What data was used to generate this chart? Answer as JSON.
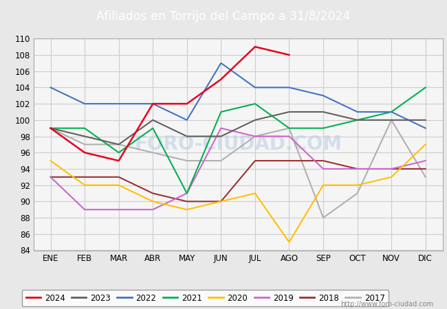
{
  "title": "Afiliados en Torrijo del Campo a 31/8/2024",
  "title_bg_color": "#4d7ebf",
  "title_text_color": "white",
  "ylim": [
    84,
    110
  ],
  "yticks": [
    84,
    86,
    88,
    90,
    92,
    94,
    96,
    98,
    100,
    102,
    104,
    106,
    108,
    110
  ],
  "months": [
    "ENE",
    "FEB",
    "MAR",
    "ABR",
    "MAY",
    "JUN",
    "JUL",
    "AGO",
    "SEP",
    "OCT",
    "NOV",
    "DIC"
  ],
  "series": {
    "2024": {
      "color": "#e8001c",
      "data": [
        99,
        96,
        95,
        102,
        102,
        105,
        109,
        108,
        null,
        null,
        null,
        null
      ]
    },
    "2023": {
      "color": "#606060",
      "data": [
        99,
        98,
        97,
        100,
        98,
        98,
        100,
        101,
        101,
        100,
        100,
        100
      ]
    },
    "2022": {
      "color": "#4472c4",
      "data": [
        104,
        102,
        102,
        102,
        100,
        107,
        104,
        104,
        103,
        101,
        101,
        99
      ]
    },
    "2021": {
      "color": "#00b050",
      "data": [
        99,
        99,
        96,
        99,
        91,
        101,
        102,
        99,
        99,
        100,
        101,
        104
      ]
    },
    "2020": {
      "color": "#ffc000",
      "data": [
        95,
        92,
        92,
        90,
        89,
        90,
        91,
        85,
        92,
        92,
        93,
        97
      ]
    },
    "2019": {
      "color": "#cc66cc",
      "data": [
        93,
        89,
        89,
        89,
        91,
        99,
        98,
        98,
        94,
        94,
        94,
        95
      ]
    },
    "2018": {
      "color": "#993333",
      "data": [
        93,
        93,
        93,
        91,
        90,
        90,
        95,
        95,
        95,
        94,
        94,
        94
      ]
    },
    "2017": {
      "color": "#b0b0b0",
      "data": [
        99,
        97,
        97,
        96,
        95,
        95,
        98,
        99,
        88,
        91,
        100,
        93
      ]
    }
  },
  "background_color": "#e8e8e8",
  "plot_bg_color": "#f5f5f5",
  "grid_color": "#cccccc",
  "watermark": "http://www.foro-ciudad.com",
  "legend_order": [
    "2024",
    "2023",
    "2022",
    "2021",
    "2020",
    "2019",
    "2018",
    "2017"
  ]
}
